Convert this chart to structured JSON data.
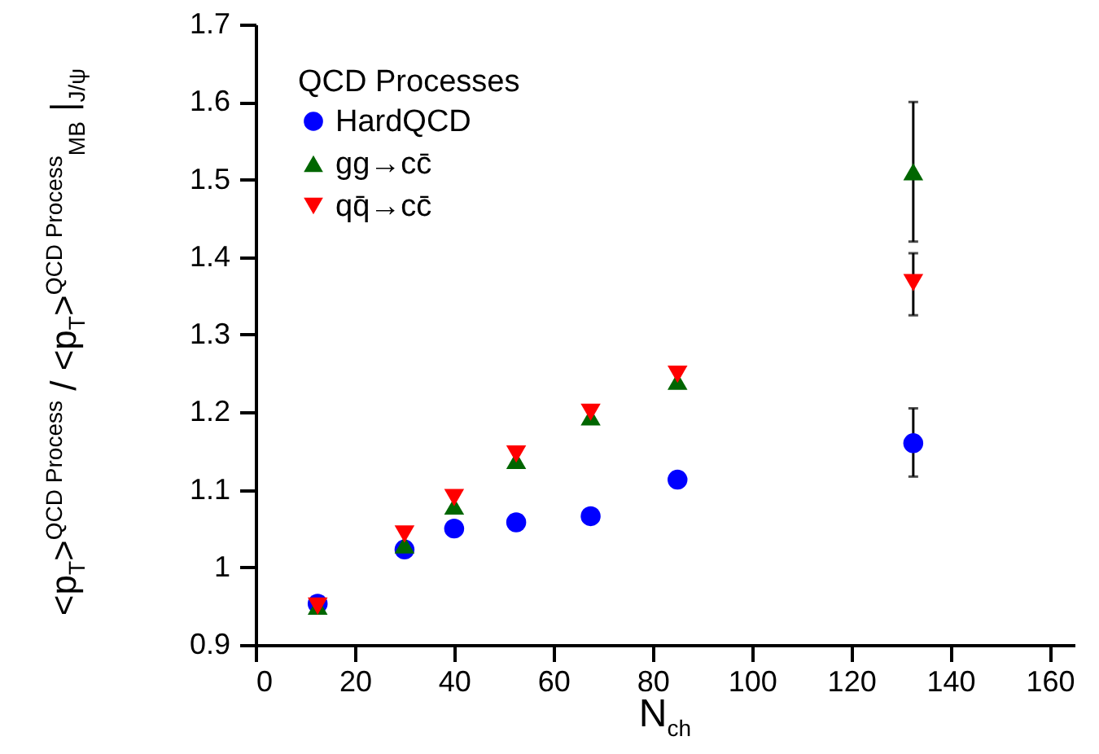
{
  "chart_data": {
    "type": "scatter",
    "xlabel": "N$_{ch}$",
    "ylabel": "<p$_{T}$>$^{QCD Process}$ / <p$_{T}$>$^{QCD Process}$$_{MB}$ |$_{J/ψ}$",
    "legend_title": "QCD Processes",
    "x": [
      12.5,
      30,
      40,
      52.5,
      67.5,
      85,
      132.5
    ],
    "series": [
      {
        "name": "HardQCD",
        "color": "#0000ff",
        "marker": "circle",
        "values": [
          0.953,
          1.023,
          1.05,
          1.058,
          1.066,
          1.113,
          1.16
        ],
        "errors": [
          null,
          null,
          null,
          null,
          null,
          null,
          [
            1.117,
            1.205
          ]
        ]
      },
      {
        "name": "gg→cc̄",
        "color": "#006600",
        "marker": "triangle",
        "values": [
          0.95,
          1.029,
          1.079,
          1.138,
          1.194,
          1.24,
          1.51
        ],
        "errors": [
          null,
          null,
          null,
          null,
          null,
          null,
          [
            1.42,
            1.6
          ]
        ]
      },
      {
        "name": "qq̄→cc̄",
        "color": "#ff0000",
        "marker": "triangle-down",
        "values": [
          0.95,
          1.043,
          1.09,
          1.146,
          1.2,
          1.249,
          1.367
        ],
        "errors": [
          null,
          null,
          null,
          null,
          null,
          null,
          [
            1.325,
            1.405
          ]
        ]
      }
    ],
    "xlim": [
      0,
      165
    ],
    "xticks": [
      0,
      20,
      40,
      60,
      80,
      100,
      120,
      140,
      160
    ],
    "ylim": [
      0.9,
      1.7
    ],
    "yticks": [
      0.9,
      1,
      1.1,
      1.2,
      1.3,
      1.4,
      1.5,
      1.6,
      1.7
    ],
    "grid": false,
    "legend": "top left"
  }
}
